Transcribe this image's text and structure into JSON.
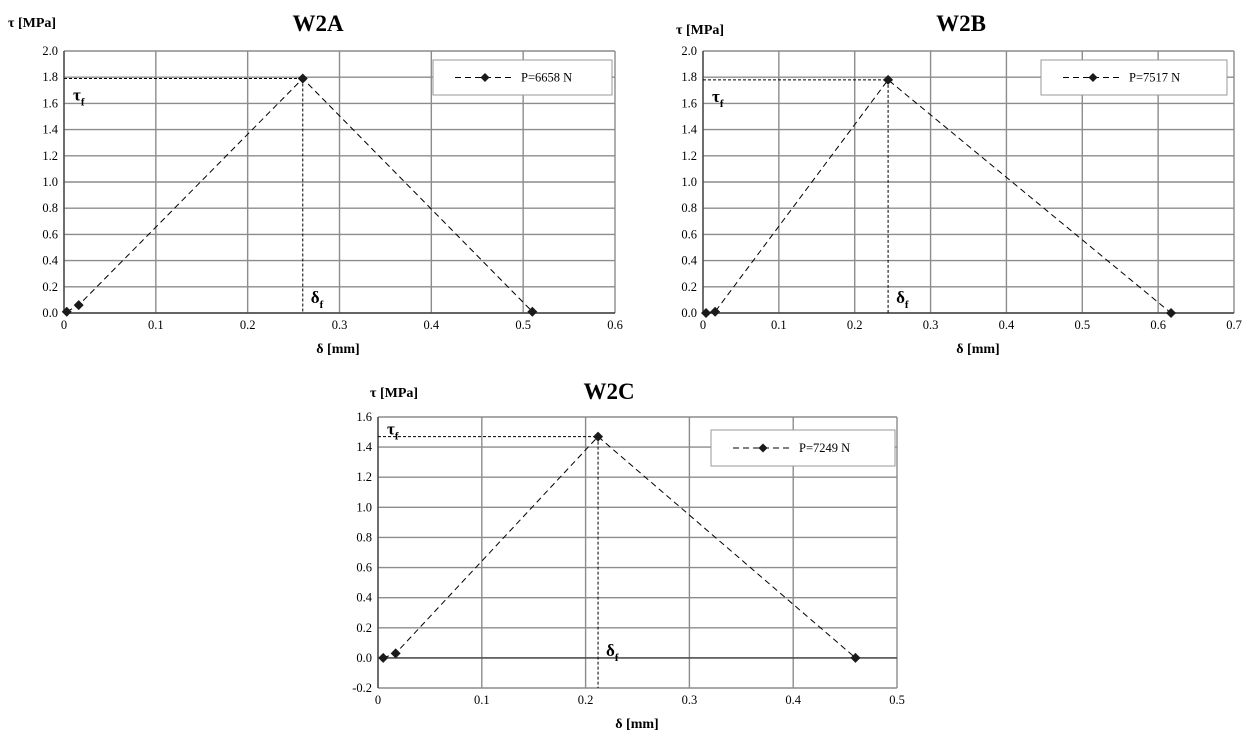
{
  "chart_data": [
    {
      "type": "line",
      "title": "W2A",
      "xlabel": "δ [mm]",
      "ylabel": "τ [MPa]",
      "xlim": [
        0,
        0.6
      ],
      "ylim": [
        0,
        2.0
      ],
      "xticks": [
        0,
        0.1,
        0.2,
        0.3,
        0.4,
        0.5,
        0.6
      ],
      "yticks": [
        0.0,
        0.2,
        0.4,
        0.6,
        0.8,
        1.0,
        1.2,
        1.4,
        1.6,
        1.8,
        2.0
      ],
      "x_tick_decimals": 1,
      "y_tick_decimals": 1,
      "grid": true,
      "legend_position": "top-right",
      "series": [
        {
          "name": "P=6658 N",
          "style": "dashed",
          "marker": "diamond",
          "x": [
            0.003,
            0.016,
            0.26,
            0.51
          ],
          "y": [
            0.01,
            0.06,
            1.79,
            0.01
          ]
        }
      ],
      "annotations": {
        "tau_label": "τ",
        "tau_sub": "f",
        "delta_label": "δ",
        "delta_sub": "f",
        "peak_x": 0.26,
        "peak_y": 1.79
      }
    },
    {
      "type": "line",
      "title": "W2B",
      "xlabel": "δ [mm]",
      "ylabel": "τ [MPa]",
      "xlim": [
        0,
        0.7
      ],
      "ylim": [
        0,
        2.0
      ],
      "xticks": [
        0,
        0.1,
        0.2,
        0.3,
        0.4,
        0.5,
        0.6,
        0.7
      ],
      "yticks": [
        0.0,
        0.2,
        0.4,
        0.6,
        0.8,
        1.0,
        1.2,
        1.4,
        1.6,
        1.8,
        2.0
      ],
      "x_tick_decimals": 1,
      "y_tick_decimals": 1,
      "grid": true,
      "legend_position": "top-right",
      "series": [
        {
          "name": "P=7517 N",
          "style": "dashed",
          "marker": "diamond",
          "x": [
            0.004,
            0.016,
            0.244,
            0.617
          ],
          "y": [
            0.0,
            0.01,
            1.78,
            0.0
          ]
        }
      ],
      "annotations": {
        "tau_label": "τ",
        "tau_sub": "f",
        "delta_label": "δ",
        "delta_sub": "f",
        "peak_x": 0.244,
        "peak_y": 1.78
      }
    },
    {
      "type": "line",
      "title": "W2C",
      "xlabel": "δ [mm]",
      "ylabel": "τ [MPa]",
      "xlim": [
        0,
        0.5
      ],
      "ylim": [
        -0.2,
        1.6
      ],
      "xticks": [
        0,
        0.1,
        0.2,
        0.3,
        0.4,
        0.5
      ],
      "yticks": [
        -0.2,
        0.0,
        0.2,
        0.4,
        0.6,
        0.8,
        1.0,
        1.2,
        1.4,
        1.6
      ],
      "x_tick_decimals": 1,
      "y_tick_decimals": 1,
      "grid": true,
      "legend_position": "top-right",
      "series": [
        {
          "name": "P=7249 N",
          "style": "dashed",
          "marker": "diamond",
          "x": [
            0.005,
            0.017,
            0.212,
            0.46
          ],
          "y": [
            0.0,
            0.03,
            1.47,
            0.0
          ]
        }
      ],
      "annotations": {
        "tau_label": "τ",
        "tau_sub": "f",
        "delta_label": "δ",
        "delta_sub": "f",
        "peak_x": 0.212,
        "peak_y": 1.47
      }
    }
  ]
}
